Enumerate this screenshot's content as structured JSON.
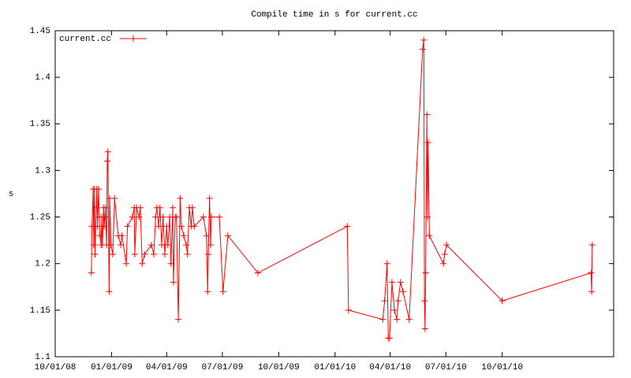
{
  "chart_data": {
    "type": "line",
    "title": "Compile time in s for current.cc",
    "y_label": "s",
    "legend": "top-left",
    "xlim": [
      "2008-10-01",
      "2011-04-01"
    ],
    "xticks": [
      {
        "value": "2008-10-01",
        "label": "10/01/08"
      },
      {
        "value": "2009-01-01",
        "label": "01/01/09"
      },
      {
        "value": "2009-04-01",
        "label": "04/01/09"
      },
      {
        "value": "2009-07-01",
        "label": "07/01/09"
      },
      {
        "value": "2009-10-01",
        "label": "10/01/09"
      },
      {
        "value": "2010-01-01",
        "label": "01/01/10"
      },
      {
        "value": "2010-04-01",
        "label": "04/01/10"
      },
      {
        "value": "2010-07-01",
        "label": "07/01/10"
      },
      {
        "value": "2010-10-01",
        "label": "10/01/10"
      }
    ],
    "ylim": [
      1.1,
      1.45
    ],
    "yticks": [
      1.1,
      1.15,
      1.2,
      1.25,
      1.3,
      1.35,
      1.4,
      1.45
    ],
    "x": [
      "2008-11-29",
      "2008-11-30",
      "2008-12-02",
      "2008-12-03",
      "2008-12-04",
      "2008-12-05",
      "2008-12-07",
      "2008-12-08",
      "2008-12-09",
      "2008-12-11",
      "2008-12-12",
      "2008-12-13",
      "2008-12-15",
      "2008-12-16",
      "2008-12-17",
      "2008-12-19",
      "2008-12-20",
      "2008-12-21",
      "2008-12-22",
      "2008-12-24",
      "2008-12-25",
      "2008-12-26",
      "2008-12-28",
      "2008-12-29",
      "2008-12-31",
      "2009-01-03",
      "2009-01-06",
      "2009-01-12",
      "2009-01-16",
      "2009-01-18",
      "2009-01-25",
      "2009-01-27",
      "2009-02-04",
      "2009-02-07",
      "2009-02-08",
      "2009-02-11",
      "2009-02-15",
      "2009-02-17",
      "2009-02-20",
      "2009-02-24",
      "2009-03-07",
      "2009-03-11",
      "2009-03-14",
      "2009-03-16",
      "2009-03-19",
      "2009-03-21",
      "2009-03-24",
      "2009-03-26",
      "2009-03-29",
      "2009-04-01",
      "2009-04-03",
      "2009-04-06",
      "2009-04-08",
      "2009-04-11",
      "2009-04-12",
      "2009-04-15",
      "2009-04-17",
      "2009-04-20",
      "2009-04-23",
      "2009-04-25",
      "2009-04-29",
      "2009-05-03",
      "2009-05-05",
      "2009-05-08",
      "2009-05-11",
      "2009-05-13",
      "2009-05-16",
      "2009-05-31",
      "2009-06-05",
      "2009-06-07",
      "2009-06-08",
      "2009-06-10",
      "2009-06-12",
      "2009-06-13",
      "2009-06-26",
      "2009-07-02",
      "2009-07-10",
      "2009-08-28",
      "2010-01-21",
      "2010-01-23",
      "2010-03-20",
      "2010-03-23",
      "2010-03-27",
      "2010-03-29",
      "2010-03-31",
      "2010-04-04",
      "2010-04-08",
      "2010-04-12",
      "2010-04-14",
      "2010-04-18",
      "2010-04-22",
      "2010-05-02",
      "2010-05-24",
      "2010-05-26",
      "2010-05-27",
      "2010-05-28",
      "2010-05-29",
      "2010-05-31",
      "2010-06-01",
      "2010-06-02",
      "2010-06-04",
      "2010-06-27",
      "2010-06-29",
      "2010-07-02",
      "2010-10-01",
      "2011-02-23",
      "2011-02-24",
      "2011-02-25"
    ],
    "series": [
      {
        "name": "current.cc",
        "color": "#ff0000",
        "values": [
          1.19,
          1.24,
          1.28,
          1.22,
          1.28,
          1.21,
          1.26,
          1.28,
          1.24,
          1.28,
          1.25,
          1.23,
          1.22,
          1.25,
          1.22,
          1.26,
          1.24,
          1.25,
          1.26,
          1.22,
          1.31,
          1.32,
          1.17,
          1.27,
          1.22,
          1.21,
          1.27,
          1.23,
          1.22,
          1.23,
          1.2,
          1.24,
          1.25,
          1.26,
          1.21,
          1.26,
          1.25,
          1.26,
          1.2,
          1.21,
          1.22,
          1.21,
          1.25,
          1.26,
          1.24,
          1.26,
          1.22,
          1.25,
          1.21,
          1.24,
          1.22,
          1.25,
          1.2,
          1.26,
          1.18,
          1.25,
          1.25,
          1.14,
          1.27,
          1.24,
          1.23,
          1.22,
          1.21,
          1.26,
          1.24,
          1.26,
          1.24,
          1.25,
          1.23,
          1.17,
          1.21,
          1.27,
          1.22,
          1.25,
          1.25,
          1.17,
          1.23,
          1.19,
          1.24,
          1.15,
          1.14,
          1.16,
          1.2,
          1.12,
          1.12,
          1.18,
          1.15,
          1.14,
          1.16,
          1.18,
          1.17,
          1.14,
          1.43,
          1.44,
          1.16,
          1.13,
          1.19,
          1.36,
          1.25,
          1.33,
          1.23,
          1.2,
          1.21,
          1.22,
          1.16,
          1.19,
          1.17,
          1.22
        ]
      }
    ]
  }
}
